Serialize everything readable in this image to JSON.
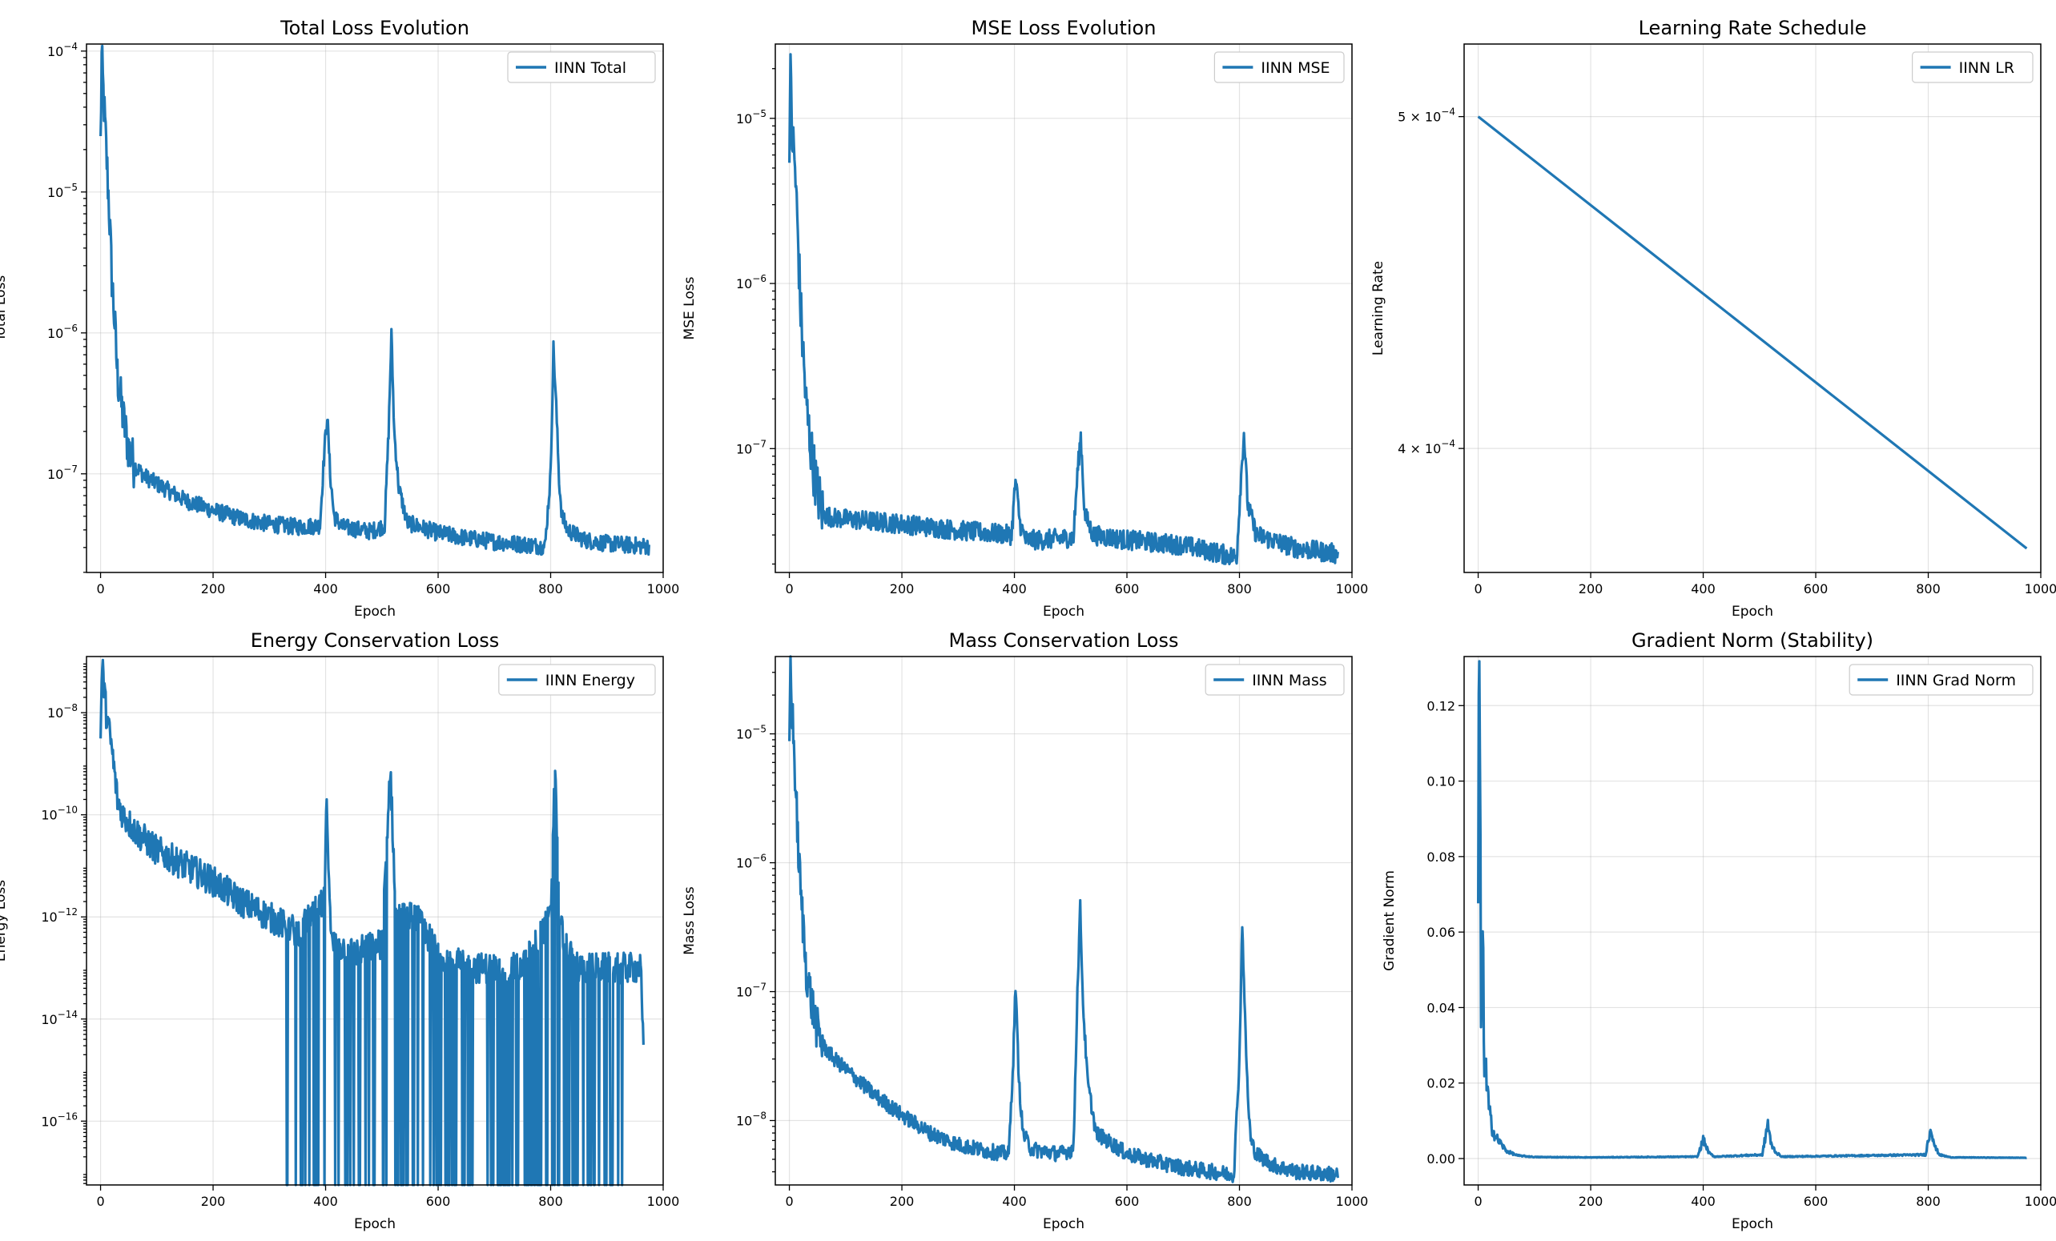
{
  "colors": {
    "series": "#1f77b4"
  },
  "chart_data": [
    {
      "type": "line",
      "title": "Total Loss Evolution",
      "xlabel": "Epoch",
      "ylabel": "Total Loss",
      "yscale": "log",
      "xlim": [
        -25,
        1000
      ],
      "ylim_log10": [
        -7.7,
        -3.95
      ],
      "xticks": [
        {
          "v": 0,
          "label": "0"
        },
        {
          "v": 200,
          "label": "200"
        },
        {
          "v": 400,
          "label": "400"
        },
        {
          "v": 600,
          "label": "600"
        },
        {
          "v": 800,
          "label": "800"
        },
        {
          "v": 1000,
          "label": "1000"
        }
      ],
      "yticks": [
        {
          "v": -4,
          "base": "10",
          "exp": "−4"
        },
        {
          "v": -5,
          "base": "10",
          "exp": "−5"
        },
        {
          "v": -6,
          "base": "10",
          "exp": "−6"
        },
        {
          "v": -7,
          "base": "10",
          "exp": "−7"
        }
      ],
      "legend": "IINN Total",
      "legend_loc": "top-right",
      "series": [
        {
          "name": "IINN Total",
          "x": [
            0,
            2,
            5,
            10,
            15,
            20,
            25,
            30,
            40,
            50,
            60,
            80,
            100,
            150,
            200,
            250,
            300,
            350,
            390,
            398,
            403,
            408,
            415,
            430,
            480,
            505,
            512,
            517,
            522,
            530,
            545,
            600,
            650,
            700,
            790,
            800,
            805,
            810,
            815,
            820,
            830,
            860,
            900,
            975
          ],
          "y": [
            2.2e-05,
            8.8e-05,
            5e-05,
            2e-05,
            8e-06,
            2.5e-06,
            1.2e-06,
            5e-07,
            2.5e-07,
            1.5e-07,
            1.15e-07,
            9.5e-08,
            8.5e-08,
            6.5e-08,
            5.5e-08,
            4.8e-08,
            4.4e-08,
            4.2e-08,
            4.3e-08,
            1.5e-07,
            2.6e-07,
            1e-07,
            5e-08,
            4.2e-08,
            3.9e-08,
            4.3e-08,
            2e-07,
            9.8e-07,
            2e-07,
            8e-08,
            4.5e-08,
            3.8e-08,
            3.5e-08,
            3.3e-08,
            3.05e-08,
            1e-07,
            7.8e-07,
            3e-07,
            9e-08,
            5e-08,
            4e-08,
            3.4e-08,
            3.2e-08,
            3.05e-08
          ]
        }
      ]
    },
    {
      "type": "line",
      "title": "MSE Loss Evolution",
      "xlabel": "Epoch",
      "ylabel": "MSE Loss",
      "yscale": "log",
      "xlim": [
        -25,
        1000
      ],
      "ylim_log10": [
        -7.75,
        -4.55
      ],
      "xticks": [
        {
          "v": 0,
          "label": "0"
        },
        {
          "v": 200,
          "label": "200"
        },
        {
          "v": 400,
          "label": "400"
        },
        {
          "v": 600,
          "label": "600"
        },
        {
          "v": 800,
          "label": "800"
        },
        {
          "v": 1000,
          "label": "1000"
        }
      ],
      "yticks": [
        {
          "v": -5,
          "base": "10",
          "exp": "−5"
        },
        {
          "v": -6,
          "base": "10",
          "exp": "−6"
        },
        {
          "v": -7,
          "base": "10",
          "exp": "−7"
        }
      ],
      "legend": "IINN MSE",
      "legend_loc": "top-right",
      "series": [
        {
          "name": "IINN MSE",
          "x": [
            0,
            2,
            5,
            10,
            15,
            20,
            25,
            30,
            40,
            50,
            60,
            80,
            100,
            200,
            300,
            395,
            402,
            410,
            420,
            450,
            505,
            512,
            518,
            525,
            540,
            600,
            700,
            795,
            802,
            808,
            815,
            830,
            900,
            975
          ],
          "y": [
            8e-06,
            1.75e-05,
            8e-06,
            5e-06,
            2e-06,
            7e-07,
            3.5e-07,
            1.8e-07,
            9e-08,
            5.5e-08,
            4e-08,
            3.8e-08,
            3.75e-08,
            3.5e-08,
            3.2e-08,
            3e-08,
            6.5e-08,
            3.5e-08,
            2.8e-08,
            2.8e-08,
            2.9e-08,
            7e-08,
            1.2e-07,
            4e-08,
            3e-08,
            2.8e-08,
            2.6e-08,
            2.2e-08,
            6e-08,
            1.25e-07,
            4.5e-08,
            3e-08,
            2.5e-08,
            2.3e-08
          ]
        }
      ]
    },
    {
      "type": "line",
      "title": "Learning Rate Schedule",
      "xlabel": "Epoch",
      "ylabel": "Learning Rate",
      "yscale": "log",
      "xlim": [
        -25,
        1000
      ],
      "ylim": [
        0.000368,
        0.000525
      ],
      "xticks": [
        {
          "v": 0,
          "label": "0"
        },
        {
          "v": 200,
          "label": "200"
        },
        {
          "v": 400,
          "label": "400"
        },
        {
          "v": 600,
          "label": "600"
        },
        {
          "v": 800,
          "label": "800"
        },
        {
          "v": 1000,
          "label": "1000"
        }
      ],
      "yticks": [
        {
          "v": 0.0005,
          "prefix": "5 × 10",
          "exp": "−4"
        },
        {
          "v": 0.0004,
          "prefix": "4 × 10",
          "exp": "−4"
        }
      ],
      "legend": "IINN LR",
      "legend_loc": "top-right",
      "series": [
        {
          "name": "IINN LR",
          "x": [
            0,
            975
          ],
          "y": [
            0.0005,
            0.000374
          ]
        }
      ]
    },
    {
      "type": "line",
      "title": "Energy Conservation Loss",
      "xlabel": "Epoch",
      "ylabel": "Energy Loss",
      "yscale": "log",
      "xlim": [
        -25,
        1000
      ],
      "ylim_log10": [
        -17.25,
        -6.9
      ],
      "xticks": [
        {
          "v": 0,
          "label": "0"
        },
        {
          "v": 200,
          "label": "200"
        },
        {
          "v": 400,
          "label": "400"
        },
        {
          "v": 600,
          "label": "600"
        },
        {
          "v": 800,
          "label": "800"
        },
        {
          "v": 1000,
          "label": "1000"
        }
      ],
      "yticks": [
        {
          "v": -8,
          "base": "10",
          "exp": "−8"
        },
        {
          "v": -10,
          "base": "10",
          "exp": "−10"
        },
        {
          "v": -12,
          "base": "10",
          "exp": "−12"
        },
        {
          "v": -14,
          "base": "10",
          "exp": "−14"
        },
        {
          "v": -16,
          "base": "10",
          "exp": "−16"
        }
      ],
      "legend": "IINN Energy",
      "legend_loc": "top-right",
      "series": [
        {
          "name": "IINN Energy",
          "x": [
            0,
            3,
            10,
            20,
            30,
            40,
            60,
            100,
            150,
            200,
            250,
            300,
            350,
            398,
            402,
            410,
            450,
            500,
            515,
            525,
            560,
            600,
            650,
            700,
            750,
            800,
            808,
            815,
            830,
            850,
            900,
            960,
            965
          ],
          "y": [
            5e-09,
            8.5e-08,
            1e-08,
            2e-09,
            2e-10,
            1e-10,
            5e-11,
            2e-11,
            1e-11,
            5e-12,
            2e-12,
            1e-12,
            5e-13,
            2e-12,
            2e-10,
            3e-13,
            2e-13,
            3e-13,
            9e-10,
            1e-12,
            1e-12,
            2e-13,
            1e-13,
            1e-13,
            1e-13,
            1e-12,
            1.2e-09,
            1e-12,
            2e-13,
            1e-13,
            1e-13,
            1e-13,
            2e-15
          ]
        }
      ]
    },
    {
      "type": "line",
      "title": "Mass Conservation Loss",
      "xlabel": "Epoch",
      "ylabel": "Mass Loss",
      "yscale": "log",
      "xlim": [
        -25,
        1000
      ],
      "ylim_log10": [
        -8.5,
        -4.4
      ],
      "xticks": [
        {
          "v": 0,
          "label": "0"
        },
        {
          "v": 200,
          "label": "200"
        },
        {
          "v": 400,
          "label": "400"
        },
        {
          "v": 600,
          "label": "600"
        },
        {
          "v": 800,
          "label": "800"
        },
        {
          "v": 1000,
          "label": "1000"
        }
      ],
      "yticks": [
        {
          "v": -5,
          "base": "10",
          "exp": "−5"
        },
        {
          "v": -6,
          "base": "10",
          "exp": "−6"
        },
        {
          "v": -7,
          "base": "10",
          "exp": "−7"
        },
        {
          "v": -8,
          "base": "10",
          "exp": "−8"
        }
      ],
      "legend": "IINN Mass",
      "legend_loc": "top-right",
      "series": [
        {
          "name": "IINN Mass",
          "x": [
            0,
            2,
            5,
            10,
            15,
            20,
            25,
            30,
            40,
            50,
            60,
            80,
            100,
            150,
            200,
            250,
            300,
            350,
            390,
            398,
            402,
            408,
            415,
            430,
            480,
            505,
            512,
            517,
            522,
            530,
            545,
            600,
            650,
            700,
            790,
            800,
            805,
            810,
            815,
            820,
            830,
            860,
            900,
            975
          ],
          "y": [
            1e-05,
            3.5e-05,
            1.5e-05,
            5e-06,
            1.5e-06,
            6e-07,
            3e-07,
            1.5e-07,
            8e-08,
            5e-08,
            3.8e-08,
            3e-08,
            2.5e-08,
            1.6e-08,
            1.1e-08,
            8e-09,
            6.5e-09,
            5.8e-09,
            5.5e-09,
            3e-08,
            1.15e-07,
            2e-08,
            8e-09,
            6e-09,
            5.5e-09,
            6e-09,
            1e-07,
            4.5e-07,
            8e-08,
            2e-08,
            8e-09,
            5.5e-09,
            4.8e-09,
            4.3e-09,
            3.8e-09,
            3e-08,
            3.5e-07,
            6e-08,
            1.5e-08,
            7e-09,
            5.5e-09,
            4.5e-09,
            4e-09,
            3.8e-09
          ]
        }
      ]
    },
    {
      "type": "line",
      "title": "Gradient Norm (Stability)",
      "xlabel": "Epoch",
      "ylabel": "Gradient Norm",
      "yscale": "linear",
      "xlim": [
        -25,
        1000
      ],
      "ylim": [
        -0.007,
        0.133
      ],
      "xticks": [
        {
          "v": 0,
          "label": "0"
        },
        {
          "v": 200,
          "label": "200"
        },
        {
          "v": 400,
          "label": "400"
        },
        {
          "v": 600,
          "label": "600"
        },
        {
          "v": 800,
          "label": "800"
        },
        {
          "v": 1000,
          "label": "1000"
        }
      ],
      "yticks": [
        {
          "v": 0.0,
          "label": "0.00"
        },
        {
          "v": 0.02,
          "label": "0.02"
        },
        {
          "v": 0.04,
          "label": "0.04"
        },
        {
          "v": 0.06,
          "label": "0.06"
        },
        {
          "v": 0.08,
          "label": "0.08"
        },
        {
          "v": 0.1,
          "label": "0.10"
        },
        {
          "v": 0.12,
          "label": "0.12"
        }
      ],
      "legend": "IINN Grad Norm",
      "legend_loc": "top-right",
      "series": [
        {
          "name": "IINN Grad Norm",
          "x": [
            0,
            1,
            3,
            5,
            8,
            10,
            15,
            20,
            25,
            30,
            40,
            50,
            70,
            100,
            200,
            390,
            400,
            410,
            420,
            505,
            515,
            520,
            530,
            540,
            795,
            805,
            812,
            820,
            840,
            975
          ],
          "y": [
            0.06,
            0.127,
            0.1,
            0.04,
            0.06,
            0.03,
            0.02,
            0.012,
            0.008,
            0.006,
            0.004,
            0.002,
            0.0008,
            0.0004,
            0.0003,
            0.0005,
            0.005,
            0.0015,
            0.0005,
            0.001,
            0.0095,
            0.004,
            0.0015,
            0.0005,
            0.001,
            0.0085,
            0.003,
            0.001,
            0.0003,
            0.0002
          ]
        }
      ]
    }
  ]
}
